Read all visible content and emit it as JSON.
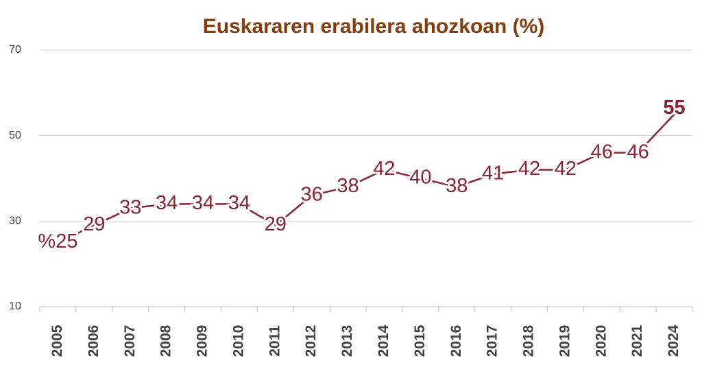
{
  "chart_data": {
    "type": "line",
    "title": "Euskararen erabilera ahozkoan (%)",
    "categories": [
      "2005",
      "2006",
      "2007",
      "2008",
      "2009",
      "2010",
      "2011",
      "2012",
      "2013",
      "2014",
      "2015",
      "2016",
      "2017",
      "2018",
      "2019",
      "2020",
      "2021",
      "2024"
    ],
    "values": [
      25,
      29,
      33,
      34,
      34,
      34,
      29,
      36,
      38,
      42,
      40,
      38,
      41,
      42,
      42,
      46,
      46,
      55
    ],
    "value_labels": [
      "%25",
      "29",
      "33",
      "34",
      "34",
      "34",
      "29",
      "36",
      "38",
      "42",
      "40",
      "38",
      "41",
      "42",
      "42",
      "46",
      "46",
      "55"
    ],
    "color": "#8b2332",
    "ylim": [
      10,
      70
    ],
    "yticks": [
      10,
      30,
      50,
      70
    ],
    "grid": true
  }
}
